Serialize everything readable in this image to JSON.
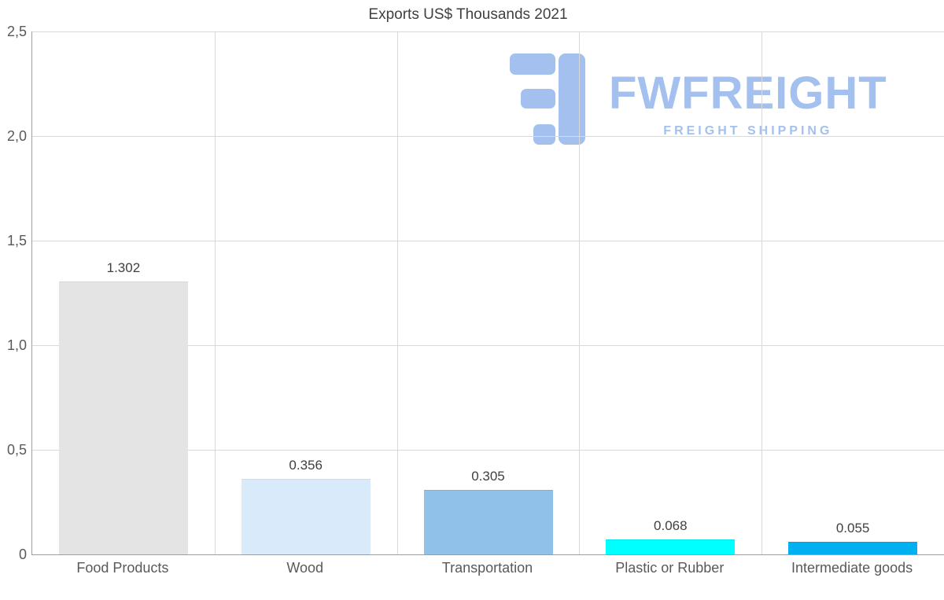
{
  "title": "Exports US$ Thousands 2021",
  "watermark": {
    "brand": "FWFREIGHT",
    "tagline": "FREIGHT SHIPPING",
    "color": "#a4c0ee"
  },
  "chart_data": {
    "type": "bar",
    "title": "Exports US$ Thousands 2021",
    "categories": [
      "Food Products",
      "Wood",
      "Transportation",
      "Plastic or Rubber",
      "Intermediate goods"
    ],
    "values": [
      1.302,
      0.356,
      0.305,
      0.068,
      0.055
    ],
    "value_labels": [
      "1.302",
      "0.356",
      "0.305",
      "0.068",
      "0.055"
    ],
    "bar_colors": [
      "#e4e4e4",
      "#d9eafb",
      "#8fc1e9",
      "#00ffff",
      "#00b0f0"
    ],
    "bar_border_colors": [
      "#d6d6d6",
      "#c8def3",
      "#7db2de",
      "#00e6e6",
      "#00a2dc"
    ],
    "xlabel": "",
    "ylabel": "",
    "ylim": [
      0,
      2.5
    ],
    "yticks": [
      0,
      0.5,
      1.0,
      1.5,
      2.0,
      2.5
    ],
    "ytick_labels": [
      "0",
      "0,5",
      "1,0",
      "1,5",
      "2,0",
      "2,5"
    ],
    "grid": true,
    "legend": "none"
  }
}
